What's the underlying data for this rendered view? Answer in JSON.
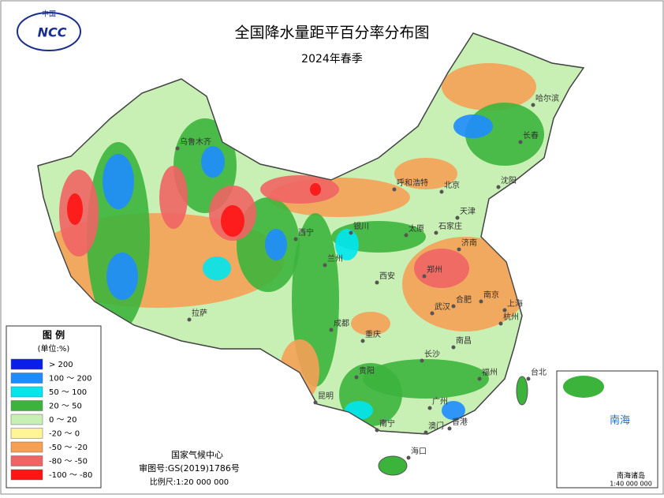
{
  "header": {
    "logo_top": "中国",
    "logo": "NCC",
    "title": "全国降水量距平百分率分布图",
    "subtitle": "2024年春季"
  },
  "legend": {
    "title": "图 例",
    "unit": "(单位:%)",
    "items": [
      {
        "label": "> 200",
        "color": "#0a1eeb"
      },
      {
        "label": "100 ～ 200",
        "color": "#1e8cff"
      },
      {
        "label": "50 ～ 100",
        "color": "#00e6f0"
      },
      {
        "label": "20 ～ 50",
        "color": "#3cb43c"
      },
      {
        "label": "0 ～ 20",
        "color": "#c8f0b4"
      },
      {
        "label": "-20 ～ 0",
        "color": "#fff596"
      },
      {
        "label": "-50 ～ -20",
        "color": "#f5a055"
      },
      {
        "label": "-80 ～ -50",
        "color": "#f06464"
      },
      {
        "label": "-100 ～ -80",
        "color": "#ff1414"
      }
    ]
  },
  "footer": {
    "org": "国家气候中心",
    "approval": "审图号:GS(2019)1786号",
    "scale": "比例尺:1:20 000 000"
  },
  "inset": {
    "sea": "南海",
    "islands": "南海诸岛",
    "scale": "1:40 000 000"
  },
  "cities": [
    "乌鲁木齐",
    "拉萨",
    "西宁",
    "兰州",
    "银川",
    "呼和浩特",
    "北京",
    "天津",
    "石家庄",
    "太原",
    "济南",
    "郑州",
    "西安",
    "成都",
    "重庆",
    "武汉",
    "合肥",
    "南京",
    "上海",
    "杭州",
    "南昌",
    "长沙",
    "贵阳",
    "昆明",
    "南宁",
    "广州",
    "福州",
    "台北",
    "香港",
    "澳门",
    "海口",
    "沈阳",
    "长春",
    "哈尔滨"
  ]
}
